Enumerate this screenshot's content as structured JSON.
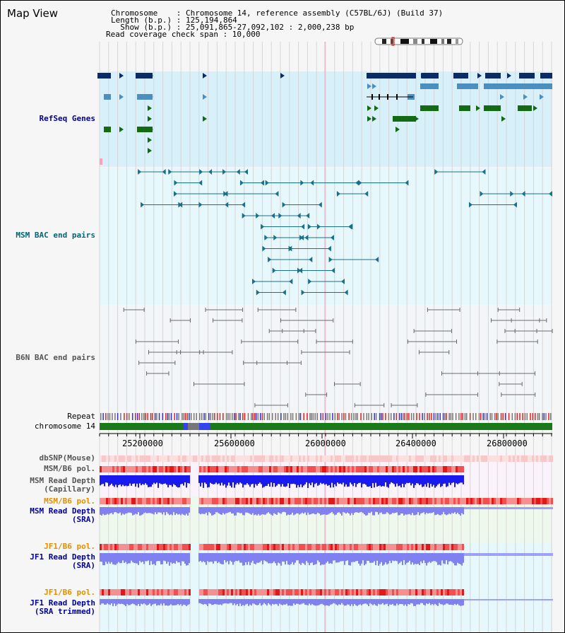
{
  "page": {
    "title": "Map View"
  },
  "header": {
    "chromosome": "Chromosome    : Chromosome 14, reference assembly (C57BL/6J) (Build 37)",
    "length": "Length (b.p.) : 125,194,864",
    "show": "  Show (b.p.) : 25,091,865-27,092,102 : 2,000,238 bp",
    "coverage": "Read coverage check span : 10,000"
  },
  "tracks": {
    "refseq": "RefSeq Genes",
    "msm_bac": "MSM BAC end pairs",
    "b6n_bac": "B6N BAC end pairs",
    "repeat": "Repeat",
    "chromosome": "chromosome 14",
    "dbsnp": "dbSNP(Mouse)",
    "msm_b6_pol_1": "MSM/B6 pol.",
    "msm_read_depth_cap_1": "MSM Read Depth",
    "msm_read_depth_cap_2": "(Capillary)",
    "msm_b6_pol_2": "MSM/B6 pol.",
    "msm_read_depth_sra_1": "MSM Read Depth",
    "msm_read_depth_sra_2": "(SRA)",
    "jf1_b6_pol_1": "JF1/B6 pol.",
    "jf1_read_depth_sra_1": "JF1 Read Depth",
    "jf1_read_depth_sra_2": "(SRA)",
    "jf1_b6_pol_2": "JF1/B6 pol.",
    "jf1_read_depth_trim_1": "JF1 Read Depth",
    "jf1_read_depth_trim_2": "(SRA trimmed)"
  },
  "axis": {
    "ticks": [
      "25200000",
      "25600000",
      "26000000",
      "26400000",
      "26800000"
    ]
  },
  "colors": {
    "refseq_bg": "#d8f0fa",
    "msm_bg": "#e6f8fb",
    "b6n_bg": "#f3f6f9",
    "navy": "#0a2b66",
    "steel": "#4a8fbf",
    "green": "#126b12",
    "teal": "#1a6f8a",
    "gray_bac": "#6a6a6a",
    "chrom_green": "#1a7a1a",
    "red": "#f03030",
    "blue": "#1a1aee",
    "lavender": "#8080f0",
    "label_navy": "#000099",
    "label_teal": "#006677",
    "label_orange": "#e09000",
    "label_gray": "#555555"
  }
}
